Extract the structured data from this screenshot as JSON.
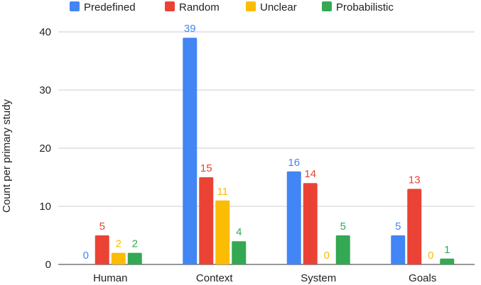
{
  "chart_data": {
    "type": "bar",
    "ylabel": "Count per primary study",
    "ylim": [
      0,
      40
    ],
    "yticks": [
      0,
      10,
      20,
      30,
      40
    ],
    "categories": [
      "Human",
      "Context",
      "System",
      "Goals"
    ],
    "legend_position": "top",
    "grid": true,
    "series": [
      {
        "name": "Predefined",
        "color": "#4285f4",
        "values": [
          0,
          39,
          16,
          5
        ]
      },
      {
        "name": "Random",
        "color": "#ea4335",
        "values": [
          5,
          15,
          14,
          13
        ]
      },
      {
        "name": "Unclear",
        "color": "#fbbc04",
        "values": [
          2,
          11,
          0,
          0
        ]
      },
      {
        "name": "Probabilistic",
        "color": "#34a853",
        "values": [
          2,
          4,
          5,
          1
        ]
      }
    ]
  }
}
